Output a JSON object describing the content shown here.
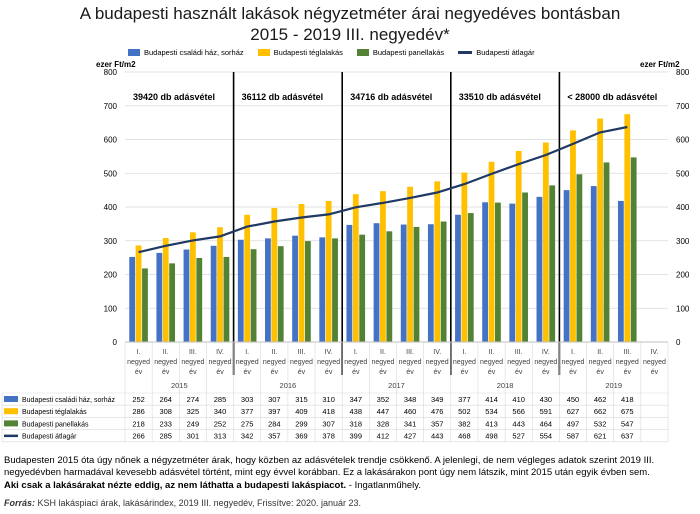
{
  "title_line1": "A budapesti használt lakások négyzetméter árai negyedéves bontásban",
  "title_line2": "2015 - 2019 III. negyedév*",
  "unit_left": "ezer Ft/m2",
  "unit_right": "ezer Ft/m2",
  "colors": {
    "csaladi": "#4472c4",
    "tegla": "#ffc000",
    "panel": "#548235",
    "atlag": "#1f3864"
  },
  "chart_data": {
    "type": "bar",
    "ylim": [
      0,
      800
    ],
    "yticks": [
      0,
      100,
      200,
      300,
      400,
      500,
      600,
      700,
      800
    ],
    "y2lim": [
      0,
      800
    ],
    "y2ticks": [
      0,
      100,
      200,
      300,
      400,
      500,
      600,
      700,
      800
    ],
    "grid": true,
    "legend_position": "top",
    "years": [
      {
        "label": "2015",
        "sales": "39420 db adásvétel"
      },
      {
        "label": "2016",
        "sales": "36112 db adásvétel"
      },
      {
        "label": "2017",
        "sales": "34716 db adásvétel"
      },
      {
        "label": "2018",
        "sales": "33510 db adásvétel"
      },
      {
        "label": "2019",
        "sales": "< 28000 db adásvétel"
      }
    ],
    "quarters": [
      "I.",
      "II.",
      "III.",
      "IV."
    ],
    "quarter_word": "negyed",
    "quarter_word2": "év",
    "series": [
      {
        "name": "Budapesti családi ház, sorház",
        "type": "bar",
        "color_key": "csaladi",
        "values": [
          252,
          264,
          274,
          285,
          303,
          307,
          315,
          310,
          347,
          352,
          348,
          349,
          377,
          414,
          410,
          430,
          450,
          462,
          418,
          null
        ]
      },
      {
        "name": "Budapesti téglalakás",
        "type": "bar",
        "color_key": "tegla",
        "values": [
          286,
          308,
          325,
          340,
          377,
          397,
          409,
          418,
          438,
          447,
          460,
          476,
          502,
          534,
          566,
          591,
          627,
          662,
          675,
          null
        ]
      },
      {
        "name": "Budapesti panellakás",
        "type": "bar",
        "color_key": "panel",
        "values": [
          218,
          233,
          249,
          252,
          275,
          284,
          299,
          307,
          318,
          328,
          341,
          357,
          382,
          413,
          443,
          464,
          497,
          532,
          547,
          null
        ]
      },
      {
        "name": "Budapesti átlagár",
        "type": "line",
        "color_key": "atlag",
        "values": [
          266,
          285,
          301,
          313,
          342,
          357,
          369,
          378,
          399,
          412,
          427,
          443,
          468,
          498,
          527,
          554,
          587,
          621,
          637,
          null
        ]
      }
    ]
  },
  "footnote": {
    "line1": "Budapesten 2015 óta úgy nőnek a négyzetméter árak, hogy közben az adásvételek trendje csökkenő. A jelenlegi, de nem végleges adatok szerint 2019 III.",
    "line2": "negyedévben harmadával kevesebb adásvétel történt, mint egy évvel korábban. Ez a lakásárakon pont úgy nem látszik, mint 2015 után egyik  évben sem.",
    "line3_bold": "Aki csak a lakásárakat nézte eddig, az nem láthatta a budapesti lakáspiacot.",
    "line3_rest": " - Ingatlanműhely."
  },
  "source": {
    "label": "Forrás:",
    "text": " KSH lakáspiaci árak, lakásárindex, 2019 III. negyedév, Frissítve: 2020. január 23."
  }
}
